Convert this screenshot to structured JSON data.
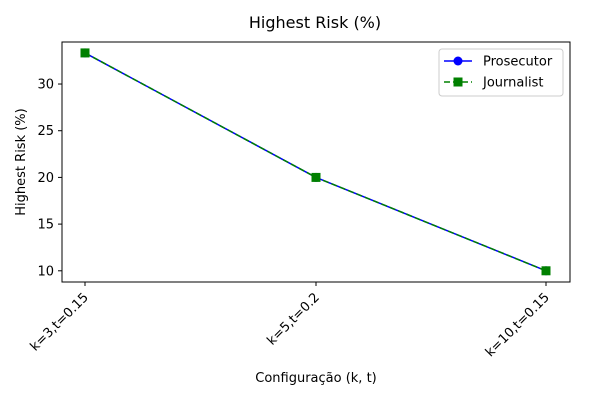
{
  "chart_data": {
    "type": "line",
    "title": "Highest Risk (%)",
    "xlabel": "Configuração (k, t)",
    "ylabel": "Highest Risk (%)",
    "categories": [
      "k=3,t=0.15",
      "k=5,t=0.2",
      "k=10,t=0.15"
    ],
    "ylim": [
      8.8,
      34.5
    ],
    "yticks": [
      10,
      15,
      20,
      25,
      30
    ],
    "grid": false,
    "legend_position": "top-right",
    "series": [
      {
        "name": "Prosecutor",
        "values": [
          33.33,
          20.0,
          10.0
        ],
        "color": "#0000ff",
        "linestyle": "solid",
        "marker": "circle"
      },
      {
        "name": "Journalist",
        "values": [
          33.33,
          20.0,
          10.0
        ],
        "color": "#008000",
        "linestyle": "dashed",
        "marker": "square"
      }
    ]
  }
}
